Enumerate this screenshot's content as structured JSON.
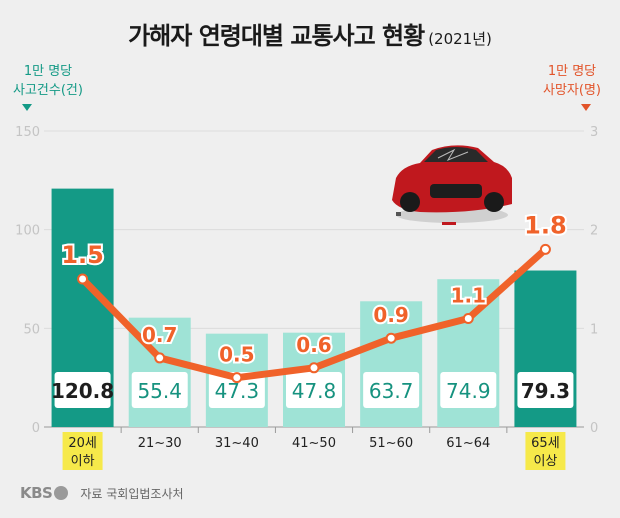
{
  "title": "가해자 연령대별 교통사고 현황",
  "title_year": "(2021년)",
  "left_axis_title": [
    "1만 명당",
    "사고건수(건)"
  ],
  "right_axis_title": [
    "1만 명당",
    "사망자(명)"
  ],
  "footer": {
    "logo": "KBS",
    "source": "자료 국회입법조사처"
  },
  "colors": {
    "bar_dark": "#149a86",
    "bar_light": "#9fe3d6",
    "line": "#f0622a",
    "label_dark": "#1e1e1e",
    "label_light": "#16927f"
  },
  "car_icon": "red-sports-car-crash-icon",
  "chart_data": {
    "type": "bar+line",
    "categories": [
      [
        "20세",
        "이하"
      ],
      [
        "21~30"
      ],
      [
        "31~40"
      ],
      [
        "41~50"
      ],
      [
        "51~60"
      ],
      [
        "61~64"
      ],
      [
        "65세",
        "이상"
      ]
    ],
    "highlight_categories": [
      0,
      6
    ],
    "series": [
      {
        "name": "1만 명당 사고건수(건)",
        "type": "bar",
        "axis": "left",
        "values": [
          120.8,
          55.4,
          47.3,
          47.8,
          63.7,
          74.9,
          79.3
        ],
        "value_labels": [
          "120.8",
          "55.4",
          "47.3",
          "47.8",
          "63.7",
          "74.9",
          "79.3"
        ]
      },
      {
        "name": "1만 명당 사망자(명)",
        "type": "line",
        "axis": "right",
        "values": [
          1.5,
          0.7,
          0.5,
          0.6,
          0.9,
          1.1,
          1.8
        ],
        "value_labels": [
          "1.5",
          "0.7",
          "0.5",
          "0.6",
          "0.9",
          "1.1",
          "1.8"
        ]
      }
    ],
    "y_left": {
      "range": [
        0,
        150
      ],
      "ticks": [
        0,
        50,
        100,
        150
      ],
      "tick_labels": [
        "0",
        "50",
        "100",
        "150"
      ]
    },
    "y_right": {
      "range": [
        0,
        3
      ],
      "ticks": [
        0,
        1,
        2,
        3
      ],
      "tick_labels": [
        "0",
        "1",
        "2",
        "3"
      ]
    },
    "grid": true
  }
}
